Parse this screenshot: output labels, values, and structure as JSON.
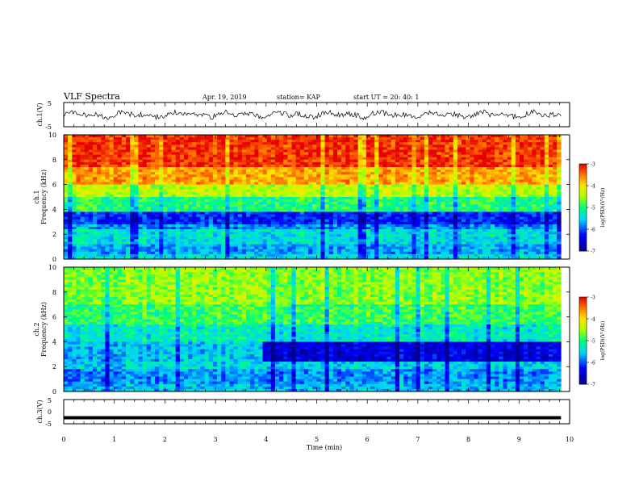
{
  "header": {
    "title": "VLF Spectra",
    "date": "Apr. 19, 2019",
    "station": "station= KAP",
    "start": "start  UT  =   20: 40: 1"
  },
  "chart_data": [
    {
      "type": "line",
      "name": "ch1_waveform",
      "ylabel": "ch.1(V)",
      "ylim": [
        -5,
        5
      ],
      "xlim": [
        0,
        10
      ],
      "y_ticks": [
        "5",
        "-5"
      ],
      "x_extent_min": 9.83,
      "values_summary": "noisy signal, roughly -2 to 2 V around 0"
    },
    {
      "type": "heatmap",
      "name": "ch1_spectrogram",
      "ylabel_lines": [
        "ch.1",
        "Frequency (kHz)"
      ],
      "ylim": [
        0,
        10
      ],
      "xlim": [
        0,
        10
      ],
      "y_ticks": [
        "0",
        "2",
        "4",
        "6",
        "8",
        "10"
      ],
      "colorbar": {
        "label": "log(PSD)(V²/Hz)",
        "ticks": [
          "-3",
          "-4",
          "-5",
          "-6",
          "-7"
        ],
        "range": [
          -7,
          -3
        ]
      },
      "bands_khz_level": [
        [
          0,
          0.5,
          -5.4
        ],
        [
          0.5,
          1.3,
          -5.7
        ],
        [
          1.3,
          2.4,
          -5.4
        ],
        [
          2.4,
          2.8,
          -5.8
        ],
        [
          2.8,
          3.8,
          -6.2
        ],
        [
          3.8,
          5.0,
          -5.0
        ],
        [
          5.0,
          6.0,
          -4.4
        ],
        [
          6.0,
          7.5,
          -3.7
        ],
        [
          7.5,
          10,
          -3.2
        ]
      ]
    },
    {
      "type": "heatmap",
      "name": "ch2_spectrogram",
      "ylabel_lines": [
        "ch.2",
        "Frequency (kHz)"
      ],
      "ylim": [
        0,
        10
      ],
      "xlim": [
        0,
        10
      ],
      "y_ticks": [
        "0",
        "2",
        "4",
        "6",
        "8",
        "10"
      ],
      "colorbar": {
        "label": "log(PSD)(V²/Hz)",
        "ticks": [
          "-3",
          "-4",
          "-5",
          "-6",
          "-7"
        ],
        "range": [
          -7,
          -3
        ]
      },
      "bands_khz_level": [
        [
          0,
          0.6,
          -5.6
        ],
        [
          0.6,
          1.8,
          -5.8
        ],
        [
          1.8,
          2.4,
          -5.5
        ],
        [
          2.4,
          4.0,
          -6.5
        ],
        [
          4.0,
          5.5,
          -5.3
        ],
        [
          5.5,
          7.0,
          -4.9
        ],
        [
          7.0,
          10,
          -4.6
        ]
      ]
    },
    {
      "type": "line",
      "name": "ch3_waveform",
      "ylabel": "ch.3(V)",
      "ylim": [
        -5,
        5
      ],
      "xlim": [
        0,
        10
      ],
      "y_ticks": [
        "5",
        "0",
        "-5"
      ],
      "constant_value": -2.5,
      "x_extent_min": 9.83
    }
  ],
  "xaxis": {
    "label": "Time  (min)",
    "ticks": [
      "0",
      "1",
      "2",
      "3",
      "4",
      "5",
      "6",
      "7",
      "8",
      "9",
      "10"
    ]
  }
}
